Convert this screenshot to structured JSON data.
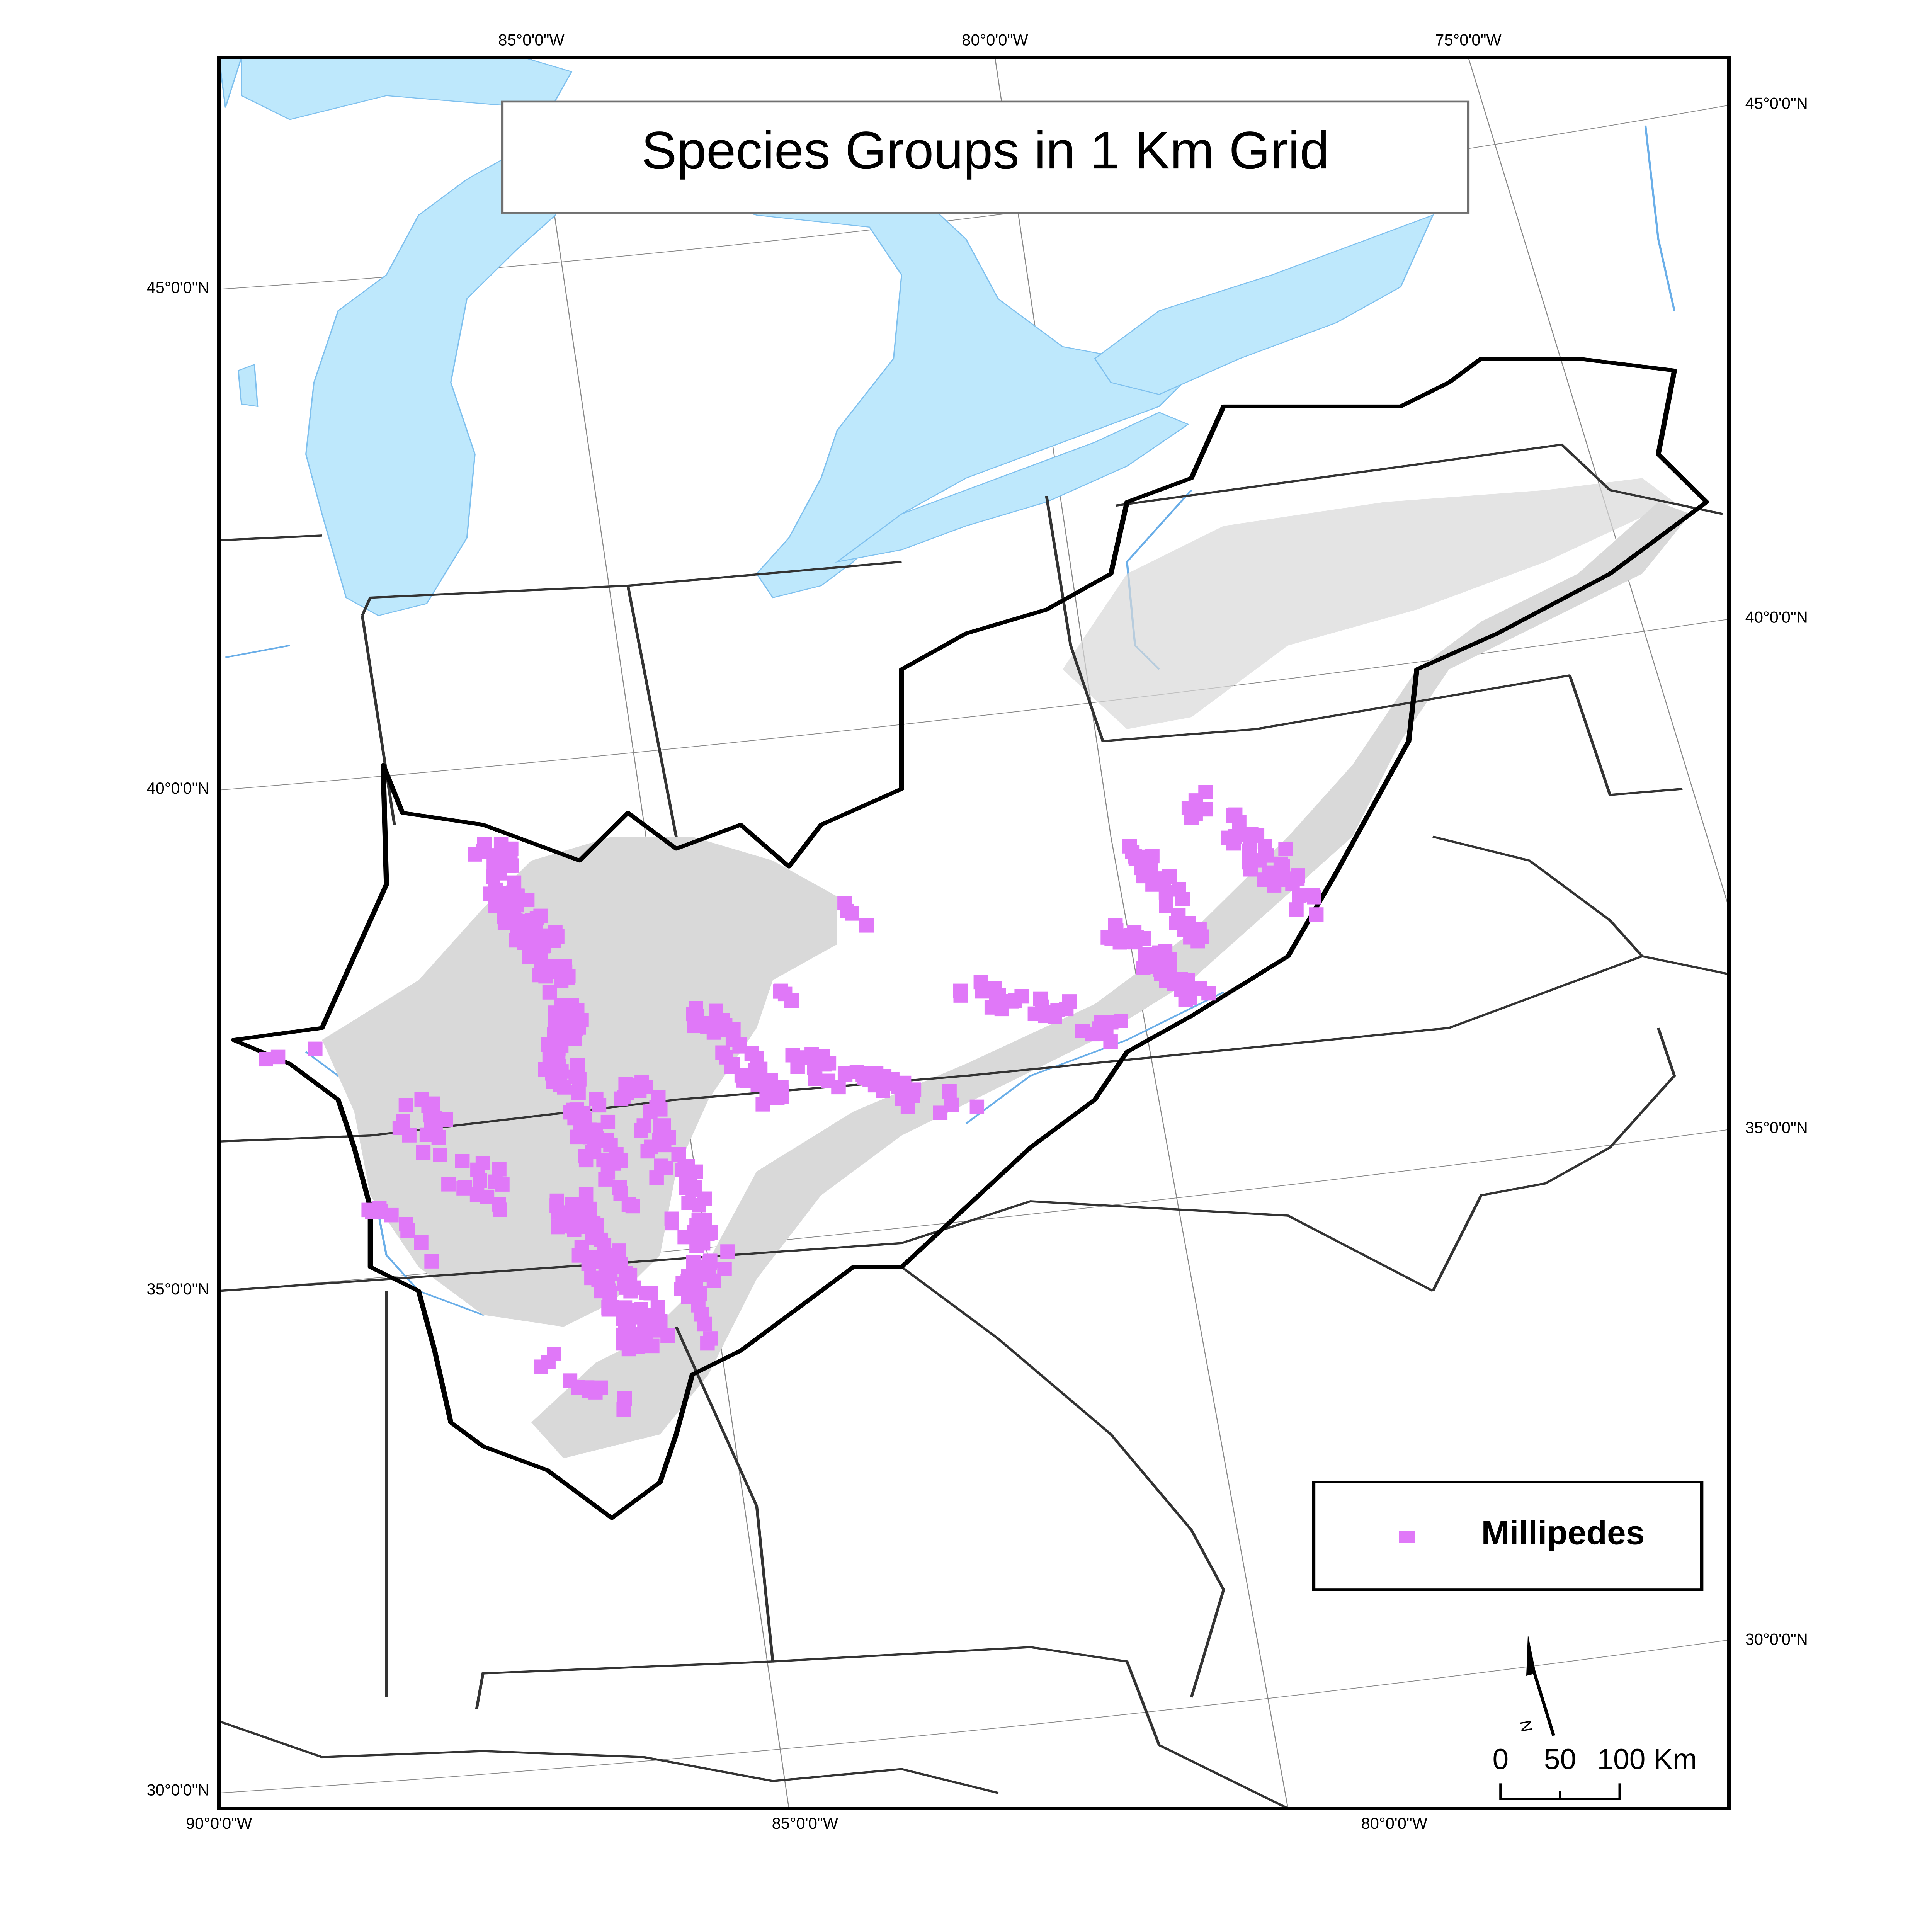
{
  "title": "Species Groups in 1 Km Grid",
  "graticule": {
    "top_labels": [
      "85°0'0\"W",
      "80°0'0\"W",
      "75°0'0\"W"
    ],
    "bottom_labels": [
      "90°0'0\"W",
      "85°0'0\"W",
      "80°0'0\"W"
    ],
    "left_labels": [
      "45°0'0\"N",
      "40°0'0\"N",
      "35°0'0\"N",
      "30°0'0\"N"
    ],
    "right_labels": [
      "45°0'0\"N",
      "40°0'0\"N",
      "35°0'0\"N",
      "30°0'0\"N"
    ]
  },
  "legend": {
    "items": [
      {
        "label": "Millipedes",
        "color": "#e078f8",
        "symbol": "square"
      }
    ]
  },
  "north_arrow": {
    "label": "N"
  },
  "scale_bar": {
    "ticks": [
      "0",
      "50",
      "100 Km"
    ]
  },
  "colors": {
    "water": "#bee8fc",
    "karst": "#d9d9d9",
    "points": "#e078f8",
    "study_boundary": "#000000",
    "state_lines": "#333333"
  }
}
